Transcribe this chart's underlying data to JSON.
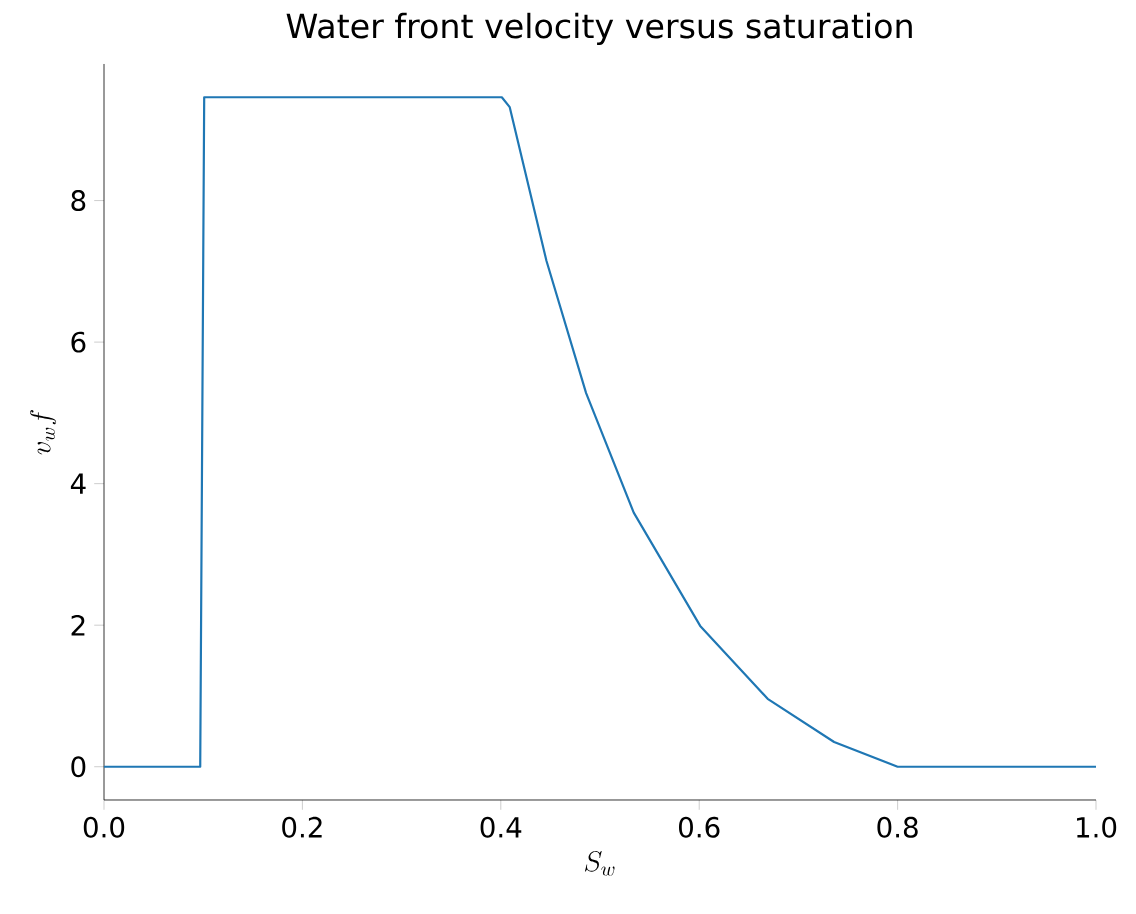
{
  "chart_data": {
    "type": "line",
    "title": "Water front velocity versus saturation",
    "xlabel": "S_w",
    "ylabel": "v_w f",
    "x": [
      0,
      0.097,
      0.101,
      0.401,
      0.409,
      0.446,
      0.486,
      0.534,
      0.601,
      0.669,
      0.736,
      0.8,
      1.0
    ],
    "series": [
      {
        "color": "#1f77b4",
        "values": [
          0,
          0,
          9.46,
          9.46,
          9.32,
          7.15,
          5.28,
          3.59,
          1.99,
          0.96,
          0.35,
          0,
          0
        ]
      }
    ],
    "xlim": [
      0,
      1.0
    ],
    "ylim": [
      -0.47,
      9.93
    ],
    "xticks": [
      {
        "value": 0,
        "label": "0.0"
      },
      {
        "value": 0.2,
        "label": "0.2"
      },
      {
        "value": 0.4,
        "label": "0.4"
      },
      {
        "value": 0.6,
        "label": "0.6"
      },
      {
        "value": 0.8,
        "label": "0.8"
      },
      {
        "value": 1.0,
        "label": "1.0"
      }
    ],
    "yticks": [
      0,
      2,
      4,
      6,
      8
    ],
    "grid": false,
    "marker": "none",
    "line_style": "solid"
  }
}
